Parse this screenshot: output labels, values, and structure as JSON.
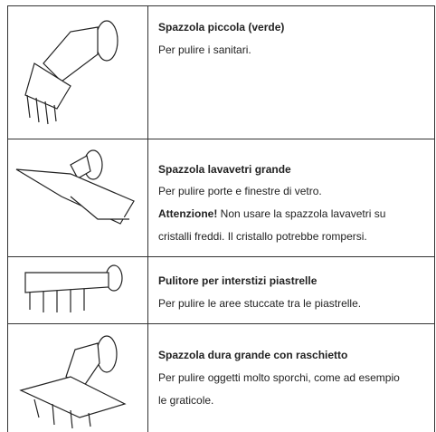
{
  "rows": [
    {
      "title": "Spazzola piccola (verde)",
      "lines": [
        "Per pulire i sanitari."
      ]
    },
    {
      "title": "Spazzola lavavetri grande",
      "lines": [
        "Per pulire porte e finestre di vetro."
      ],
      "warning": {
        "label": "Attenzione!",
        "lines": [
          "Non usare la spazzola lavavetri su",
          "cristalli freddi. Il cristallo potrebbe rompersi."
        ]
      }
    },
    {
      "title": "Pulitore per interstizi piastrelle",
      "lines": [
        "Per pulire le aree stuccate tra le piastrelle."
      ]
    },
    {
      "title": "Spazzola dura grande con raschietto",
      "lines": [
        "Per pulire oggetti molto sporchi, come ad esempio",
        "le graticole."
      ]
    }
  ]
}
